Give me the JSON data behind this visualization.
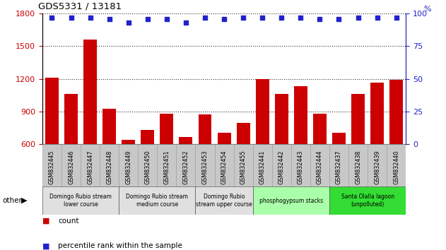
{
  "title": "GDS5331 / 13181",
  "samples": [
    "GSM832445",
    "GSM832446",
    "GSM832447",
    "GSM832448",
    "GSM832449",
    "GSM832450",
    "GSM832451",
    "GSM832452",
    "GSM832453",
    "GSM832454",
    "GSM832455",
    "GSM832441",
    "GSM832442",
    "GSM832443",
    "GSM832444",
    "GSM832437",
    "GSM832438",
    "GSM832439",
    "GSM832440"
  ],
  "counts": [
    1210,
    1060,
    1560,
    920,
    635,
    730,
    875,
    660,
    870,
    700,
    790,
    1195,
    1060,
    1130,
    880,
    700,
    1060,
    1165,
    1190
  ],
  "percentiles": [
    97,
    97,
    97,
    96,
    93,
    96,
    96,
    93,
    97,
    96,
    97,
    97,
    97,
    97,
    96,
    96,
    97,
    97,
    97
  ],
  "bar_color": "#cc0000",
  "dot_color": "#2222cc",
  "ylim_left": [
    600,
    1800
  ],
  "ylim_right": [
    0,
    100
  ],
  "yticks_left": [
    600,
    900,
    1200,
    1500,
    1800
  ],
  "yticks_right": [
    0,
    25,
    50,
    75,
    100
  ],
  "groups": [
    {
      "label": "Domingo Rubio stream\nlower course",
      "start": 0,
      "end": 4,
      "color": "#e0e0e0"
    },
    {
      "label": "Domingo Rubio stream\nmedium course",
      "start": 4,
      "end": 8,
      "color": "#e0e0e0"
    },
    {
      "label": "Domingo Rubio\nstream upper course",
      "start": 8,
      "end": 11,
      "color": "#e0e0e0"
    },
    {
      "label": "phosphogypsum stacks",
      "start": 11,
      "end": 15,
      "color": "#aaffaa"
    },
    {
      "label": "Santa Olalla lagoon\n(unpolluted)",
      "start": 15,
      "end": 19,
      "color": "#33dd33"
    }
  ],
  "tick_label_color_left": "#cc0000",
  "tick_label_color_right": "#2222cc",
  "other_label": "other",
  "legend_count_label": "count",
  "legend_pct_label": "percentile rank within the sample",
  "xtick_bg_color": "#c8c8c8"
}
